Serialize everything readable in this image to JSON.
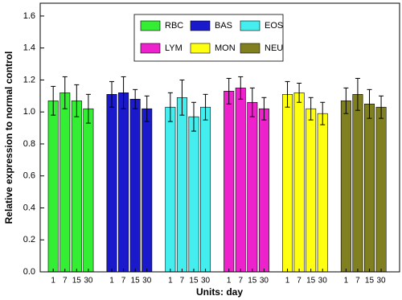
{
  "chart_data": {
    "type": "bar",
    "x_label": "Units: day",
    "y_label": "Relative expression to normal control",
    "categories": [
      "1",
      "7",
      "15",
      "30"
    ],
    "series": [
      {
        "name": "RBC",
        "color": "#33ee33",
        "values": [
          1.07,
          1.12,
          1.07,
          1.02
        ],
        "errors": [
          0.09,
          0.1,
          0.1,
          0.09
        ]
      },
      {
        "name": "BAS",
        "color": "#1a1acc",
        "values": [
          1.11,
          1.12,
          1.08,
          1.02
        ],
        "errors": [
          0.08,
          0.1,
          0.06,
          0.08
        ]
      },
      {
        "name": "EOS",
        "color": "#44eeee",
        "values": [
          1.03,
          1.09,
          0.97,
          1.03
        ],
        "errors": [
          0.09,
          0.11,
          0.09,
          0.08
        ]
      },
      {
        "name": "LYM",
        "color": "#ee22cc",
        "values": [
          1.13,
          1.15,
          1.06,
          1.02
        ],
        "errors": [
          0.08,
          0.07,
          0.09,
          0.07
        ]
      },
      {
        "name": "MON",
        "color": "#ffff11",
        "values": [
          1.11,
          1.12,
          1.02,
          0.99
        ],
        "errors": [
          0.08,
          0.06,
          0.07,
          0.07
        ]
      },
      {
        "name": "NEU",
        "color": "#808020",
        "values": [
          1.07,
          1.11,
          1.05,
          1.03
        ],
        "errors": [
          0.08,
          0.1,
          0.09,
          0.07
        ]
      }
    ],
    "ylim": [
      0,
      1.68
    ],
    "yticks": [
      {
        "value": 0,
        "label": "0.0"
      },
      {
        "value": 0.2,
        "label": "0.2"
      },
      {
        "value": 0.4,
        "label": "0.4"
      },
      {
        "value": 0.6,
        "label": "0.6"
      },
      {
        "value": 0.8,
        "label": "0.8"
      },
      {
        "value": 1,
        "label": "1.0"
      },
      {
        "value": 1.2,
        "label": "1.2"
      },
      {
        "value": 1.4,
        "label": "1.4"
      },
      {
        "value": 1.6,
        "label": "1.6"
      }
    ]
  }
}
